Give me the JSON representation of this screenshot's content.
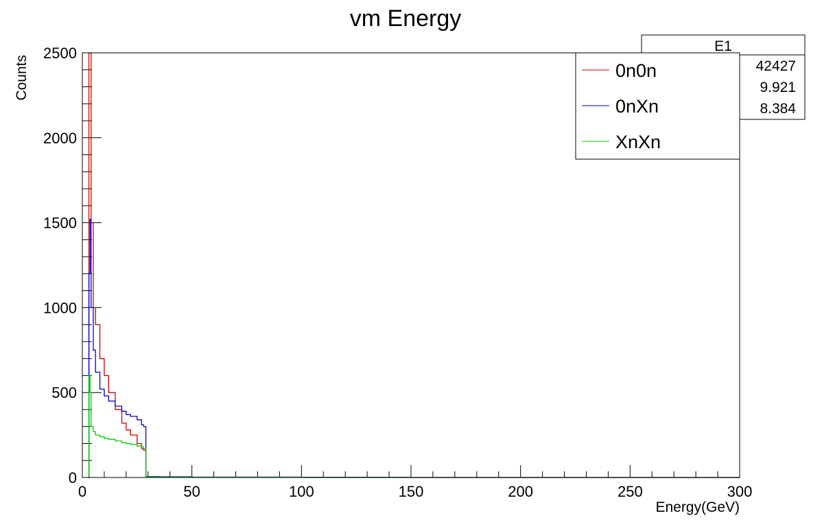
{
  "chart_data": {
    "type": "line",
    "title": "vm Energy",
    "xlabel": "Energy(GeV)",
    "ylabel": "Counts",
    "xlim": [
      0,
      300
    ],
    "ylim": [
      0,
      2500
    ],
    "x_ticks": [
      0,
      50,
      100,
      150,
      200,
      250,
      300
    ],
    "y_ticks": [
      0,
      500,
      1000,
      1500,
      2000,
      2500
    ],
    "x_tick_labels": [
      "0",
      "50",
      "100",
      "150",
      "200",
      "250",
      "300"
    ],
    "y_tick_labels": [
      "0",
      "500",
      "1000",
      "1500",
      "2000",
      "2500"
    ],
    "grid": false,
    "legend_position": "top-right",
    "series": [
      {
        "name": "0n0n",
        "color": "#cc0000",
        "x": [
          2.5,
          3,
          3.5,
          4,
          5,
          6,
          8,
          10,
          12,
          15,
          18,
          20,
          22,
          25,
          27,
          28,
          29,
          35,
          50,
          100,
          150,
          200,
          250,
          300
        ],
        "y": [
          0,
          2500,
          2500,
          1500,
          1000,
          900,
          700,
          600,
          500,
          400,
          320,
          280,
          250,
          200,
          170,
          160,
          5,
          4,
          2,
          1,
          0,
          0,
          0,
          0
        ]
      },
      {
        "name": "0nXn",
        "color": "#0000cc",
        "x": [
          2.5,
          3,
          3.5,
          4,
          5,
          6,
          8,
          10,
          12,
          15,
          18,
          20,
          22,
          25,
          27,
          28,
          29,
          35,
          50,
          100,
          150,
          200,
          250,
          300
        ],
        "y": [
          0,
          1200,
          1520,
          1000,
          750,
          620,
          520,
          480,
          450,
          420,
          390,
          370,
          360,
          340,
          310,
          300,
          5,
          4,
          2,
          1,
          0,
          0,
          0,
          0
        ]
      },
      {
        "name": "XnXn",
        "color": "#00cc00",
        "x": [
          2.5,
          3,
          3.5,
          4,
          5,
          6,
          8,
          10,
          12,
          15,
          18,
          20,
          22,
          25,
          27,
          28,
          29,
          35,
          50,
          100,
          150,
          200,
          250,
          300
        ],
        "y": [
          0,
          600,
          500,
          300,
          270,
          250,
          240,
          230,
          225,
          215,
          205,
          200,
          195,
          185,
          180,
          170,
          3,
          2,
          1,
          0,
          0,
          0,
          0,
          0
        ]
      }
    ],
    "stats_box": {
      "title": "E1",
      "values": [
        "42427",
        "9.921",
        "8.384"
      ]
    }
  }
}
